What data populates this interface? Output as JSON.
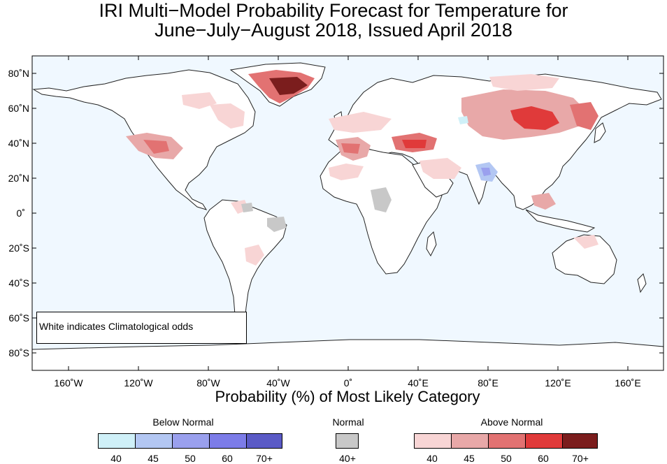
{
  "title_line1": "IRI Multi−Model Probability Forecast for Temperature for",
  "title_line2": "June−July−August 2018, Issued April 2018",
  "x_axis_title": "Probability (%) of Most Likely Category",
  "lat_labels": [
    "80˚N",
    "60˚N",
    "40˚N",
    "20˚N",
    "0˚",
    "20˚S",
    "40˚S",
    "60˚S",
    "80˚S"
  ],
  "lon_labels": [
    "160˚W",
    "120˚W",
    "80˚W",
    "40˚W",
    "0˚",
    "40˚E",
    "80˚E",
    "120˚E",
    "160˚E"
  ],
  "note": "White indicates Climatological odds",
  "colors": {
    "ocean": "#f0f8ff",
    "land": "#ffffff",
    "below": [
      "#cff0f8",
      "#b3c7f3",
      "#9aa0ee",
      "#7c7ce8",
      "#5a5ac6"
    ],
    "normal": "#c8c8c8",
    "above": [
      "#f8d5d5",
      "#e8a8a8",
      "#e27272",
      "#e03a3a",
      "#7b1d1d"
    ]
  },
  "legend": {
    "below_normal": {
      "label": "Below Normal",
      "ticks": [
        "40",
        "45",
        "50",
        "60",
        "70+"
      ]
    },
    "normal": {
      "label": "Normal",
      "tick": "40+"
    },
    "above_normal": {
      "label": "Above Normal",
      "ticks": [
        "40",
        "45",
        "50",
        "60",
        "70+"
      ]
    }
  }
}
